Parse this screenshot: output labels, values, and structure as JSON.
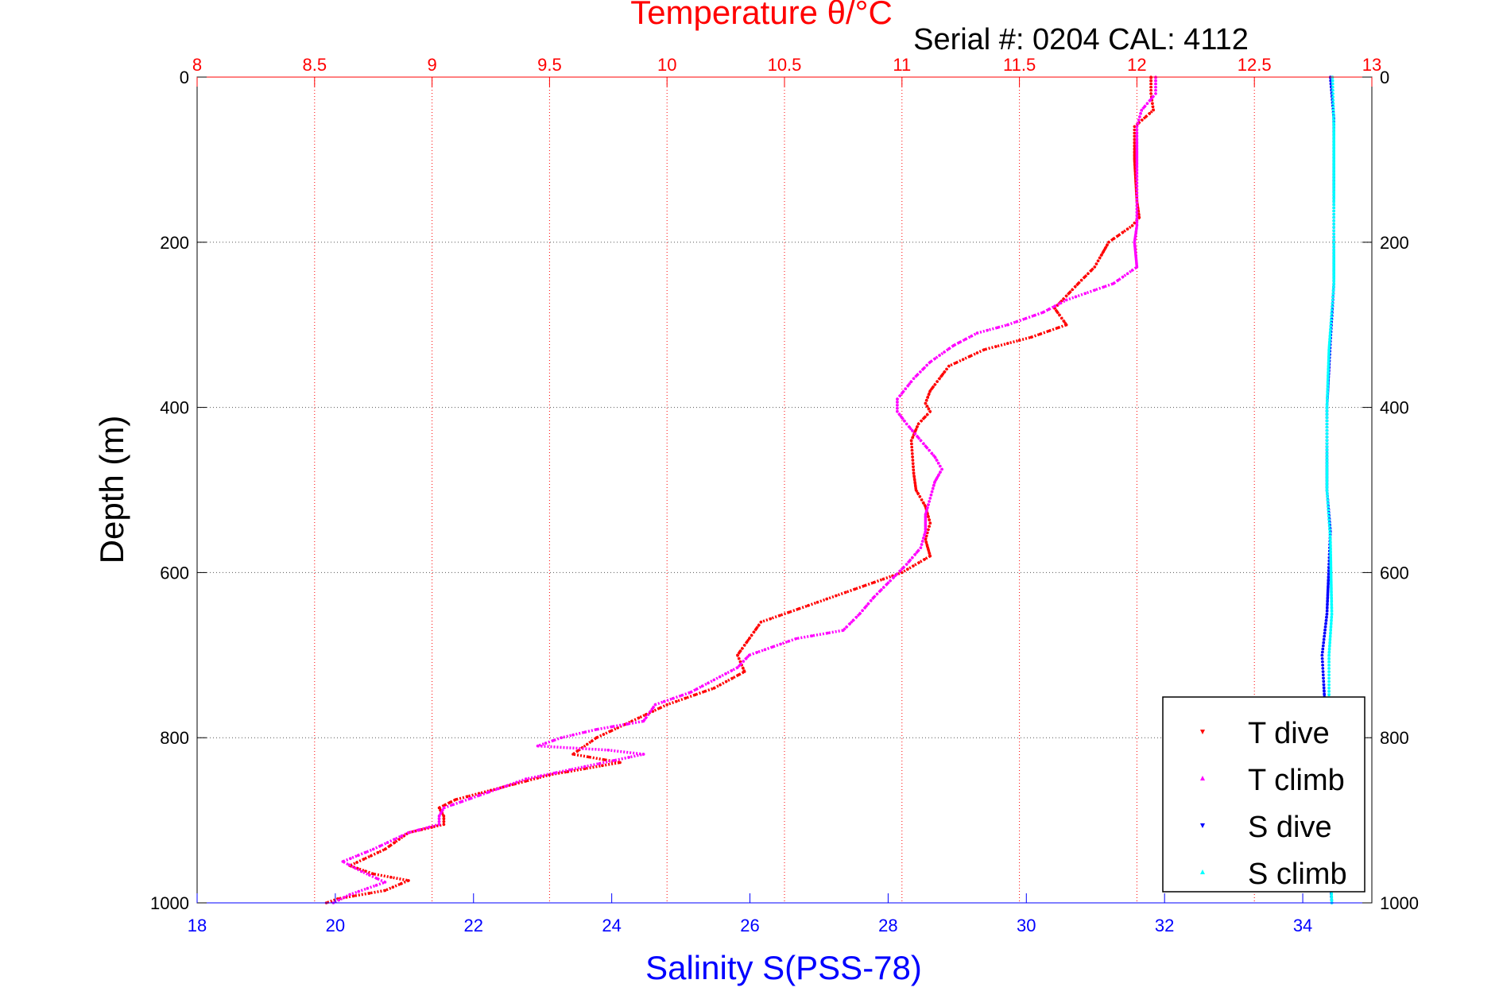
{
  "chart_data": {
    "type": "scatter",
    "title": "Temperature θ/°C",
    "subtitle": "Serial #: 0204  CAL: 4112",
    "ylabel": "Depth (m)",
    "xlabel": "Salinity S(PSS-78)",
    "depth_axis": {
      "range": [
        0,
        1000
      ],
      "reversed": true,
      "ticks": [
        0,
        200,
        400,
        600,
        800,
        1000
      ],
      "grid": true
    },
    "temperature_axis": {
      "position": "top",
      "range": [
        8,
        13
      ],
      "ticks": [
        8,
        8.5,
        9,
        9.5,
        10,
        10.5,
        11,
        11.5,
        12,
        12.5,
        13
      ],
      "tick_labels": [
        "8",
        "8.5",
        "9",
        "9.5",
        "10",
        "10.5",
        "11",
        "11.5",
        "12",
        "12.5",
        "13"
      ],
      "grid": true
    },
    "salinity_axis": {
      "position": "bottom",
      "range": [
        18,
        35
      ],
      "ticks": [
        18,
        20,
        22,
        24,
        26,
        28,
        30,
        32,
        34
      ],
      "grid": false
    },
    "legend": {
      "placement": "bottom-right",
      "entries": [
        "T dive",
        "T climb",
        "S dive",
        "S climb"
      ]
    },
    "colors": {
      "T dive": "#ff0000",
      "T climb": "#ff00ff",
      "S dive": "#0000ff",
      "S climb": "#00ffff",
      "temperature_axis": "#ff0000",
      "salinity_axis": "#0000ff"
    },
    "series": [
      {
        "name": "T dive",
        "axis": "temperature",
        "points": [
          [
            12.06,
            0
          ],
          [
            12.06,
            20
          ],
          [
            12.07,
            40
          ],
          [
            11.99,
            60
          ],
          [
            11.99,
            100
          ],
          [
            12.0,
            150
          ],
          [
            12.01,
            170
          ],
          [
            11.98,
            180
          ],
          [
            11.88,
            200
          ],
          [
            11.82,
            230
          ],
          [
            11.75,
            250
          ],
          [
            11.65,
            280
          ],
          [
            11.7,
            300
          ],
          [
            11.55,
            315
          ],
          [
            11.35,
            330
          ],
          [
            11.2,
            350
          ],
          [
            11.12,
            380
          ],
          [
            11.1,
            395
          ],
          [
            11.12,
            405
          ],
          [
            11.07,
            420
          ],
          [
            11.04,
            440
          ],
          [
            11.05,
            480
          ],
          [
            11.06,
            500
          ],
          [
            11.1,
            520
          ],
          [
            11.12,
            540
          ],
          [
            11.1,
            560
          ],
          [
            11.12,
            580
          ],
          [
            11.0,
            600
          ],
          [
            10.8,
            620
          ],
          [
            10.6,
            640
          ],
          [
            10.4,
            660
          ],
          [
            10.35,
            680
          ],
          [
            10.3,
            700
          ],
          [
            10.33,
            720
          ],
          [
            10.2,
            740
          ],
          [
            10.0,
            760
          ],
          [
            9.85,
            780
          ],
          [
            9.7,
            800
          ],
          [
            9.6,
            820
          ],
          [
            9.8,
            830
          ],
          [
            9.5,
            845
          ],
          [
            9.3,
            860
          ],
          [
            9.1,
            875
          ],
          [
            9.03,
            885
          ],
          [
            9.05,
            895
          ],
          [
            9.05,
            905
          ],
          [
            8.9,
            915
          ],
          [
            8.8,
            935
          ],
          [
            8.65,
            955
          ],
          [
            8.75,
            965
          ],
          [
            8.9,
            973
          ],
          [
            8.8,
            985
          ],
          [
            8.6,
            995
          ],
          [
            8.55,
            1000
          ]
        ]
      },
      {
        "name": "T climb",
        "axis": "temperature",
        "points": [
          [
            12.08,
            0
          ],
          [
            12.08,
            20
          ],
          [
            12.02,
            40
          ],
          [
            12.0,
            60
          ],
          [
            12.0,
            100
          ],
          [
            12.0,
            180
          ],
          [
            11.99,
            200
          ],
          [
            12.0,
            230
          ],
          [
            11.9,
            250
          ],
          [
            11.7,
            270
          ],
          [
            11.6,
            285
          ],
          [
            11.45,
            300
          ],
          [
            11.32,
            310
          ],
          [
            11.22,
            325
          ],
          [
            11.12,
            345
          ],
          [
            11.05,
            365
          ],
          [
            10.98,
            390
          ],
          [
            10.98,
            405
          ],
          [
            11.02,
            420
          ],
          [
            11.08,
            440
          ],
          [
            11.14,
            460
          ],
          [
            11.17,
            475
          ],
          [
            11.14,
            490
          ],
          [
            11.12,
            510
          ],
          [
            11.1,
            530
          ],
          [
            11.1,
            550
          ],
          [
            11.08,
            570
          ],
          [
            11.02,
            590
          ],
          [
            10.95,
            610
          ],
          [
            10.88,
            630
          ],
          [
            10.82,
            650
          ],
          [
            10.75,
            670
          ],
          [
            10.55,
            680
          ],
          [
            10.45,
            690
          ],
          [
            10.35,
            700
          ],
          [
            10.3,
            715
          ],
          [
            10.2,
            730
          ],
          [
            10.1,
            745
          ],
          [
            9.95,
            760
          ],
          [
            9.9,
            780
          ],
          [
            9.7,
            790
          ],
          [
            9.55,
            800
          ],
          [
            9.45,
            810
          ],
          [
            9.75,
            815
          ],
          [
            9.9,
            820
          ],
          [
            9.65,
            835
          ],
          [
            9.4,
            850
          ],
          [
            9.2,
            870
          ],
          [
            9.05,
            885
          ],
          [
            9.03,
            895
          ],
          [
            9.03,
            905
          ],
          [
            8.9,
            915
          ],
          [
            8.75,
            935
          ],
          [
            8.62,
            950
          ],
          [
            8.7,
            962
          ],
          [
            8.8,
            975
          ],
          [
            8.65,
            990
          ],
          [
            8.58,
            1000
          ]
        ]
      },
      {
        "name": "S dive",
        "axis": "salinity",
        "points": [
          [
            34.4,
            0
          ],
          [
            34.45,
            50
          ],
          [
            34.45,
            150
          ],
          [
            34.45,
            250
          ],
          [
            34.4,
            320
          ],
          [
            34.35,
            400
          ],
          [
            34.35,
            500
          ],
          [
            34.4,
            550
          ],
          [
            34.35,
            650
          ],
          [
            34.28,
            700
          ],
          [
            34.32,
            760
          ],
          [
            34.35,
            850
          ],
          [
            34.38,
            950
          ],
          [
            34.42,
            1000
          ]
        ]
      },
      {
        "name": "S climb",
        "axis": "salinity",
        "points": [
          [
            34.43,
            0
          ],
          [
            34.45,
            60
          ],
          [
            34.45,
            150
          ],
          [
            34.45,
            250
          ],
          [
            34.38,
            330
          ],
          [
            34.35,
            400
          ],
          [
            34.35,
            500
          ],
          [
            34.4,
            560
          ],
          [
            34.42,
            650
          ],
          [
            34.38,
            700
          ],
          [
            34.38,
            760
          ],
          [
            34.4,
            850
          ],
          [
            34.4,
            950
          ],
          [
            34.42,
            1000
          ]
        ]
      }
    ]
  }
}
